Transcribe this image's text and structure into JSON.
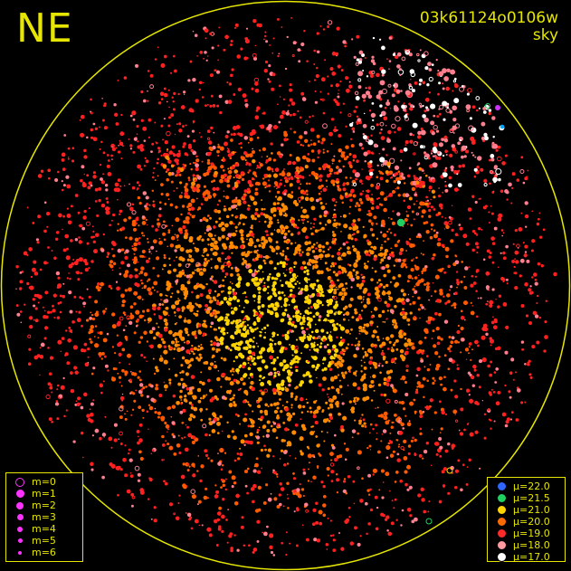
{
  "corner_label": "NE",
  "file_id": "03k61124o0106w",
  "subtitle": "sky",
  "magnitude_legend": [
    {
      "label": "m=0",
      "symbol": "open-ring",
      "color": "#ff33ff"
    },
    {
      "label": "m=1",
      "symbol": "filled-dot",
      "color": "#ff33ff"
    },
    {
      "label": "m=2",
      "symbol": "filled-dot",
      "color": "#ff33ff"
    },
    {
      "label": "m=3",
      "symbol": "filled-dot",
      "color": "#ff33ff"
    },
    {
      "label": "m=4",
      "symbol": "filled-dot",
      "color": "#ff33ff"
    },
    {
      "label": "m=5",
      "symbol": "filled-dot",
      "color": "#ff33ff"
    },
    {
      "label": "m=6",
      "symbol": "filled-dot",
      "color": "#ff33ff"
    }
  ],
  "surface_brightness_legend": [
    {
      "label": "μ=22.0",
      "color": "#2f66ff"
    },
    {
      "label": "μ=21.5",
      "color": "#20d060"
    },
    {
      "label": "μ=21.0",
      "color": "#ffd400"
    },
    {
      "label": "μ=20.0",
      "color": "#ff6a00"
    },
    {
      "label": "μ=19.0",
      "color": "#ff2a2a"
    },
    {
      "label": "μ=18.0",
      "color": "#ff9aa0"
    },
    {
      "label": "μ=17.0",
      "color": "#ffffff"
    }
  ],
  "colors": {
    "background": "#000000",
    "annotation": "#e6e600",
    "magnitude_marker": "#ff33ff"
  }
}
